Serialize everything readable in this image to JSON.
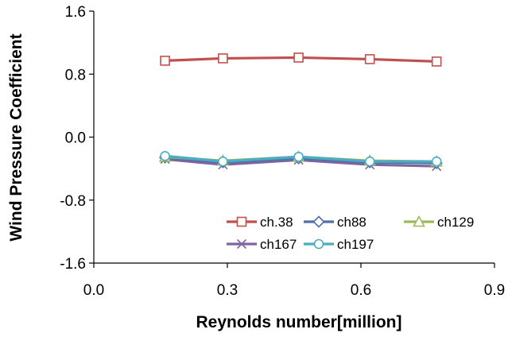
{
  "chart_data": {
    "type": "line",
    "title": "",
    "xlabel": "Reynolds number[million]",
    "ylabel": "Wind Pressure Coefficient",
    "xlim": [
      0.0,
      0.9
    ],
    "ylim": [
      -1.6,
      1.6
    ],
    "xticks": [
      "0.0",
      "0.3",
      "0.6",
      "0.9"
    ],
    "yticks": [
      "1.6",
      "0.8",
      "0.0",
      "-0.8",
      "-1.6"
    ],
    "x": [
      0.16,
      0.29,
      0.46,
      0.62,
      0.77
    ],
    "legend_position": "bottom-right",
    "series": [
      {
        "name": "ch.38",
        "marker": "square",
        "color": "#c0504d",
        "values": [
          0.97,
          1.0,
          1.01,
          0.99,
          0.96
        ]
      },
      {
        "name": "ch88",
        "marker": "diamond",
        "color": "#4f6fa8",
        "values": [
          -0.26,
          -0.32,
          -0.27,
          -0.32,
          -0.33
        ]
      },
      {
        "name": "ch129",
        "marker": "triangle",
        "color": "#9bbb59",
        "values": [
          -0.25,
          -0.3,
          -0.25,
          -0.3,
          -0.31
        ]
      },
      {
        "name": "ch167",
        "marker": "x",
        "color": "#8064a2",
        "values": [
          -0.28,
          -0.35,
          -0.29,
          -0.35,
          -0.37
        ]
      },
      {
        "name": "ch197",
        "marker": "circle",
        "color": "#4bacc6",
        "values": [
          -0.24,
          -0.31,
          -0.25,
          -0.31,
          -0.31
        ]
      }
    ]
  }
}
